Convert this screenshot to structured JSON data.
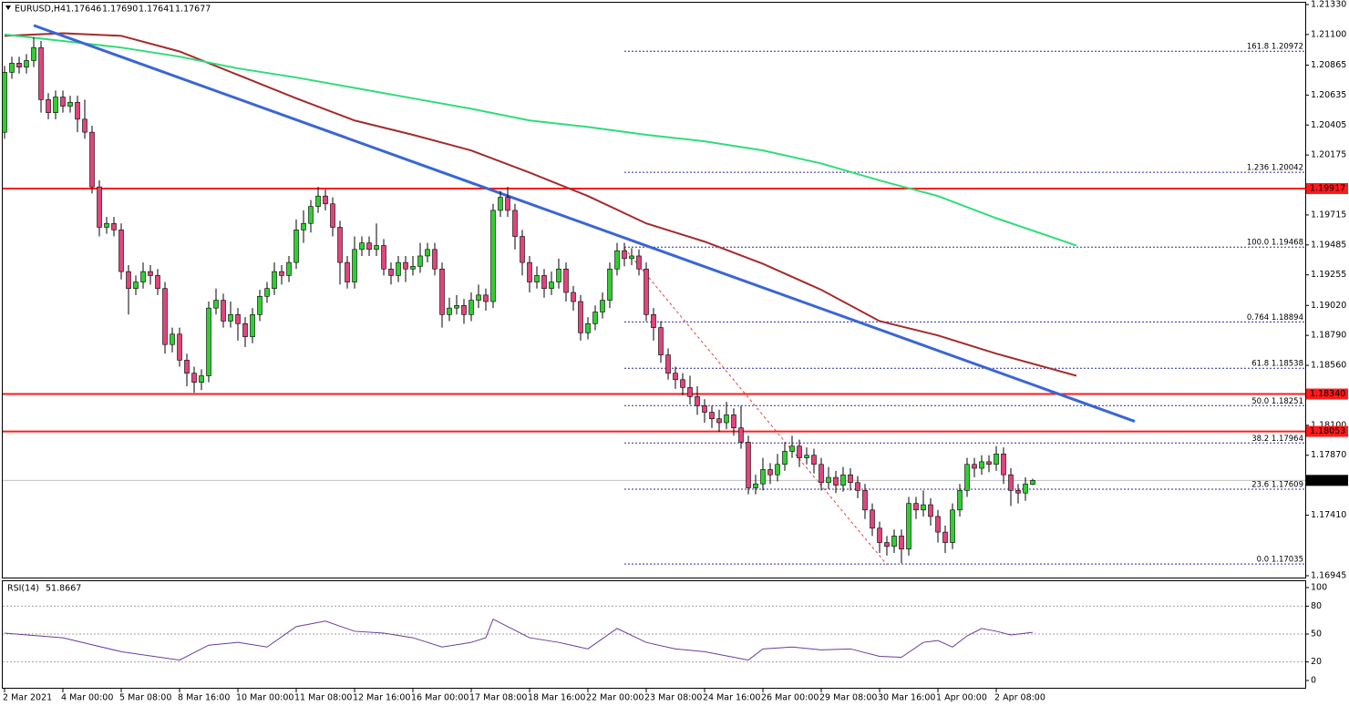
{
  "chart_data": {
    "type": "candlestick",
    "title": "EURUSD,H4",
    "header_ohlc": [
      1.17646,
      {
        "value": 1.1769,
        "label": "1.17690"
      },
      1.17641,
      1.17677
    ],
    "bull_color": "#32cd32",
    "bear_color": "#e0457b",
    "ylim": [
      1.16945,
      1.2133
    ],
    "yticks": [
      {
        "value": 1.2133,
        "label": "1.21330"
      },
      {
        "value": 1.211,
        "label": "1.21100"
      },
      1.20865,
      1.20635,
      1.20405,
      1.20175,
      1.19715,
      1.19485,
      1.19255,
      {
        "value": 1.1902,
        "label": "1.19020"
      },
      {
        "value": 1.1879,
        "label": "1.18790"
      },
      {
        "value": 1.1856,
        "label": "1.18560"
      },
      {
        "value": 1.181,
        "label": "1.18100"
      },
      {
        "value": 1.1787,
        "label": "1.17870"
      },
      {
        "value": 1.1741,
        "label": "1.17410"
      },
      1.16945
    ],
    "xticks": [
      {
        "value": 0,
        "label": "2 Mar 2021"
      },
      {
        "value": 8,
        "label": "4 Mar 00:00"
      },
      {
        "value": 16,
        "label": "5 Mar 08:00"
      },
      {
        "value": 24,
        "label": "8 Mar 16:00"
      },
      {
        "value": 32,
        "label": "10 Mar 00:00"
      },
      {
        "value": 40,
        "label": "11 Mar 08:00"
      },
      {
        "value": 48,
        "label": "12 Mar 16:00"
      },
      {
        "value": 56,
        "label": "16 Mar 00:00"
      },
      {
        "value": 64,
        "label": "17 Mar 08:00"
      },
      {
        "value": 72,
        "label": "18 Mar 16:00"
      },
      {
        "value": 80,
        "label": "22 Mar 00:00"
      },
      {
        "value": 88,
        "label": "23 Mar 08:00"
      },
      {
        "value": 96,
        "label": "24 Mar 16:00"
      },
      {
        "value": 104,
        "label": "26 Mar 00:00"
      },
      {
        "value": 112,
        "label": "29 Mar 08:00"
      },
      {
        "value": 120,
        "label": "30 Mar 16:00"
      },
      {
        "value": 128,
        "label": "1 Apr 00:00"
      },
      {
        "value": 136,
        "label": "2 Apr 08:00"
      }
    ],
    "candles": [
      [
        1.2035,
        1.2086,
        1.203,
        1.2081
      ],
      [
        1.2081,
        1.2093,
        1.2076,
        1.2088
      ],
      [
        1.2088,
        1.2093,
        1.208,
        1.2085
      ],
      [
        1.2085,
        1.2095,
        1.208,
        1.209
      ],
      [
        1.209,
        1.2108,
        1.2085,
        1.21
      ],
      [
        1.21,
        1.2105,
        1.205,
        1.206
      ],
      [
        1.206,
        1.2065,
        1.2045,
        1.205
      ],
      [
        1.205,
        1.2067,
        1.2045,
        1.2062
      ],
      [
        1.2062,
        1.2067,
        1.205,
        1.2055
      ],
      [
        1.2055,
        1.2063,
        1.205,
        1.2058
      ],
      [
        1.2058,
        1.2063,
        1.2035,
        1.2045
      ],
      [
        1.2045,
        1.206,
        1.203,
        1.2035
      ],
      [
        1.2035,
        1.204,
        1.1988,
        1.1993
      ],
      [
        1.1993,
        1.1998,
        1.1955,
        1.1962
      ],
      [
        1.1962,
        1.197,
        1.1957,
        1.1965
      ],
      [
        1.1965,
        1.197,
        1.1955,
        1.196
      ],
      [
        1.196,
        1.1965,
        1.1922,
        1.1928
      ],
      [
        1.1928,
        1.1933,
        1.1895,
        1.1915
      ],
      [
        1.1915,
        1.1925,
        1.191,
        1.192
      ],
      [
        1.192,
        1.1935,
        1.1915,
        1.1928
      ],
      [
        1.1928,
        1.1933,
        1.1918,
        1.1925
      ],
      [
        1.1925,
        1.193,
        1.191,
        1.1915
      ],
      [
        1.1915,
        1.192,
        1.1865,
        1.1872
      ],
      [
        1.1872,
        1.1885,
        1.1866,
        1.188
      ],
      [
        1.188,
        1.1885,
        1.1855,
        1.186
      ],
      [
        1.186,
        1.1865,
        1.184,
        1.185
      ],
      [
        1.185,
        1.1855,
        1.1835,
        1.1843
      ],
      [
        1.1843,
        1.1853,
        1.1837,
        1.1848
      ],
      [
        1.1848,
        1.1905,
        1.1843,
        1.19
      ],
      [
        1.19,
        1.1915,
        1.1895,
        1.1906
      ],
      [
        1.1906,
        1.1911,
        1.1885,
        1.189
      ],
      [
        1.189,
        1.1905,
        1.1885,
        1.1895
      ],
      [
        1.1895,
        1.19,
        1.1875,
        1.1888
      ],
      [
        1.1888,
        1.1893,
        1.187,
        1.1878
      ],
      [
        1.1878,
        1.19,
        1.1873,
        1.1895
      ],
      [
        1.1895,
        1.1914,
        1.189,
        1.1909
      ],
      [
        1.1909,
        1.192,
        1.1904,
        1.1915
      ],
      [
        1.1915,
        1.1935,
        1.191,
        1.1928
      ],
      [
        1.1928,
        1.1933,
        1.1918,
        1.1925
      ],
      [
        1.1925,
        1.194,
        1.192,
        1.1935
      ],
      [
        1.1935,
        1.1968,
        1.193,
        1.196
      ],
      [
        1.196,
        1.1975,
        1.195,
        1.1965
      ],
      [
        1.1965,
        1.1983,
        1.1958,
        1.1978
      ],
      [
        1.1978,
        1.1993,
        1.1973,
        1.1986
      ],
      [
        1.1986,
        1.1991,
        1.1975,
        1.198
      ],
      [
        1.198,
        1.1985,
        1.1955,
        1.1962
      ],
      [
        1.1962,
        1.1967,
        1.1918,
        1.1935
      ],
      [
        1.1935,
        1.194,
        1.1915,
        1.192
      ],
      [
        1.192,
        1.1955,
        1.1915,
        1.1945
      ],
      [
        1.1945,
        1.1955,
        1.194,
        1.195
      ],
      [
        1.195,
        1.1955,
        1.194,
        1.1945
      ],
      [
        1.1945,
        1.1965,
        1.194,
        1.1948
      ],
      [
        1.1948,
        1.1953,
        1.1925,
        1.193
      ],
      [
        1.193,
        1.1935,
        1.1918,
        1.1925
      ],
      [
        1.1925,
        1.194,
        1.192,
        1.1935
      ],
      [
        1.1935,
        1.194,
        1.192,
        1.193
      ],
      [
        1.193,
        1.194,
        1.1925,
        1.1932
      ],
      [
        1.1932,
        1.195,
        1.1927,
        1.194
      ],
      [
        1.194,
        1.195,
        1.1935,
        1.1945
      ],
      [
        1.1945,
        1.195,
        1.1925,
        1.193
      ],
      [
        1.193,
        1.1935,
        1.1885,
        1.1895
      ],
      [
        1.1895,
        1.1908,
        1.189,
        1.19
      ],
      [
        1.19,
        1.191,
        1.1895,
        1.1902
      ],
      [
        1.1902,
        1.1907,
        1.1888,
        1.1895
      ],
      [
        1.1895,
        1.1912,
        1.189,
        1.1906
      ],
      [
        1.1906,
        1.1918,
        1.19,
        1.191
      ],
      [
        1.191,
        1.1915,
        1.1898,
        1.1905
      ],
      [
        1.1905,
        1.198,
        1.19,
        1.1975
      ],
      [
        1.1975,
        1.199,
        1.197,
        1.1985
      ],
      [
        1.1985,
        1.1993,
        1.197,
        1.1975
      ],
      [
        1.1975,
        1.198,
        1.1945,
        1.1955
      ],
      [
        1.1955,
        1.196,
        1.1925,
        1.1935
      ],
      [
        1.1935,
        1.194,
        1.1912,
        1.192
      ],
      [
        1.192,
        1.1932,
        1.1915,
        1.1925
      ],
      [
        1.1925,
        1.193,
        1.1908,
        1.1915
      ],
      [
        1.1915,
        1.1928,
        1.191,
        1.192
      ],
      [
        1.192,
        1.1938,
        1.1915,
        1.193
      ],
      [
        1.193,
        1.1935,
        1.1905,
        1.1912
      ],
      [
        1.1912,
        1.1917,
        1.1898,
        1.1905
      ],
      [
        1.1905,
        1.191,
        1.1875,
        1.1881
      ],
      [
        1.1881,
        1.1893,
        1.1876,
        1.1888
      ],
      [
        1.1888,
        1.1902,
        1.1883,
        1.1897
      ],
      [
        1.1897,
        1.1912,
        1.1892,
        1.1906
      ],
      [
        1.1906,
        1.1935,
        1.19,
        1.193
      ],
      [
        1.193,
        1.195,
        1.1925,
        1.1944
      ],
      [
        1.1944,
        1.195,
        1.1932,
        1.1938
      ],
      [
        1.1938,
        1.1946,
        1.1933,
        1.194
      ],
      [
        1.194,
        1.1945,
        1.1925,
        1.193
      ],
      [
        1.193,
        1.1935,
        1.189,
        1.1895
      ],
      [
        1.1895,
        1.19,
        1.1875,
        1.1885
      ],
      [
        1.1885,
        1.189,
        1.1858,
        1.1864
      ],
      [
        1.1864,
        1.1869,
        1.1845,
        1.185
      ],
      [
        1.185,
        1.1855,
        1.1838,
        1.1845
      ],
      [
        1.1845,
        1.185,
        1.1833,
        1.1839
      ],
      [
        1.1839,
        1.1848,
        1.1826,
        1.1832
      ],
      [
        1.1832,
        1.184,
        1.1818,
        1.1825
      ],
      [
        1.1825,
        1.183,
        1.1812,
        1.182
      ],
      [
        1.182,
        1.1825,
        1.1808,
        1.1815
      ],
      [
        1.1815,
        1.1822,
        1.1805,
        1.1812
      ],
      [
        1.1812,
        1.1828,
        1.1807,
        1.1818
      ],
      [
        1.1818,
        1.1823,
        1.1802,
        1.1808
      ],
      [
        1.1808,
        1.1825,
        1.1792,
        1.1797
      ],
      [
        1.1797,
        1.1802,
        1.1757,
        1.1762
      ],
      [
        1.1762,
        1.1772,
        1.1757,
        1.1765
      ],
      [
        1.1765,
        1.1785,
        1.176,
        1.1776
      ],
      [
        1.1776,
        1.1781,
        1.1765,
        1.1772
      ],
      [
        1.1772,
        1.1788,
        1.1767,
        1.178
      ],
      [
        1.178,
        1.1797,
        1.1775,
        1.179
      ],
      [
        1.179,
        1.1802,
        1.1785,
        1.1794
      ],
      [
        1.1794,
        1.1799,
        1.1778,
        1.1785
      ],
      [
        1.1785,
        1.1793,
        1.178,
        1.1787
      ],
      [
        1.1787,
        1.1792,
        1.1773,
        1.178
      ],
      [
        1.178,
        1.1785,
        1.176,
        1.1766
      ],
      [
        1.1766,
        1.1778,
        1.1761,
        1.177
      ],
      [
        1.177,
        1.1775,
        1.1758,
        1.1764
      ],
      [
        1.1764,
        1.1778,
        1.1759,
        1.1772
      ],
      [
        1.1772,
        1.1777,
        1.176,
        1.1766
      ],
      [
        1.1766,
        1.1771,
        1.1754,
        1.176
      ],
      [
        1.176,
        1.1765,
        1.1738,
        1.1745
      ],
      [
        1.1745,
        1.175,
        1.1725,
        1.1731
      ],
      [
        1.1731,
        1.1736,
        1.1712,
        1.172
      ],
      [
        1.172,
        1.1725,
        1.171,
        1.1717
      ],
      [
        1.1717,
        1.173,
        1.1712,
        1.1725
      ],
      [
        1.1725,
        1.173,
        1.1704,
        1.1715
      ],
      [
        1.1715,
        1.1755,
        1.171,
        1.175
      ],
      [
        1.175,
        1.1755,
        1.1738,
        1.1745
      ],
      [
        1.1745,
        1.176,
        1.174,
        1.1749
      ],
      [
        1.1749,
        1.1754,
        1.1733,
        1.174
      ],
      [
        1.174,
        1.1745,
        1.172,
        1.1728
      ],
      [
        1.1728,
        1.1733,
        1.1712,
        1.172
      ],
      [
        1.172,
        1.175,
        1.1715,
        1.1745
      ],
      [
        1.1745,
        1.1765,
        1.174,
        1.176
      ],
      [
        1.176,
        1.1785,
        1.1755,
        1.178
      ],
      [
        1.178,
        1.1785,
        1.177,
        1.1777
      ],
      [
        1.1777,
        1.1787,
        1.1772,
        1.1782
      ],
      [
        1.1782,
        1.1787,
        1.1774,
        1.178
      ],
      [
        1.178,
        1.1794,
        1.1775,
        1.1788
      ],
      [
        1.1788,
        1.1793,
        1.1765,
        1.1772
      ],
      [
        1.1772,
        1.1777,
        1.1748,
        1.176
      ],
      [
        1.176,
        1.1765,
        1.175,
        1.1758
      ],
      [
        1.1758,
        1.177,
        1.1752,
        1.1765
      ],
      [
        1.17646,
        1.1769,
        1.17641,
        1.17677
      ]
    ],
    "moving_averages": [
      {
        "color": "#a52a2a",
        "x": [
          0,
          8,
          16,
          24,
          32,
          40,
          48,
          56,
          64,
          72,
          80,
          88,
          96,
          104,
          112,
          120,
          128,
          136,
          147
        ],
        "values": [
          1.2109,
          1.2111,
          1.2109,
          1.2097,
          1.2079,
          1.2061,
          1.2044,
          1.2033,
          1.2021,
          1.2004,
          1.1986,
          1.1965,
          1.1951,
          1.1934,
          1.1914,
          1.189,
          1.1879,
          1.1865,
          1.1848
        ]
      },
      {
        "color": "#2edc7a",
        "x": [
          0,
          8,
          16,
          24,
          32,
          40,
          48,
          56,
          64,
          72,
          80,
          88,
          96,
          104,
          112,
          120,
          128,
          136,
          147
        ],
        "values": [
          1.211,
          1.2105,
          1.21,
          1.2093,
          1.2084,
          1.2077,
          1.2069,
          1.2061,
          1.2053,
          1.2044,
          1.2039,
          1.2033,
          1.2028,
          1.2021,
          1.2011,
          1.1998,
          1.1986,
          1.1969,
          1.1948
        ]
      }
    ],
    "trendline": {
      "color": "#3a66d4",
      "x": [
        4,
        155
      ],
      "values": [
        1.2117,
        1.1813
      ]
    },
    "fib_diagonal": {
      "color": "#e04040",
      "x": [
        85,
        121
      ],
      "values": [
        1.1946,
        1.1703
      ]
    },
    "fib_color": "#2a2aa0",
    "fib_levels": [
      {
        "value": 1.20972,
        "label": "161.8 1.20972"
      },
      {
        "value": 1.20042,
        "label": "1.236 1.20042"
      },
      {
        "value": 1.19468,
        "label": "100.0 1.19468"
      },
      {
        "value": 1.18894,
        "label": "0.764 1.18894"
      },
      {
        "value": 1.18538,
        "label": "61.8 1.18538"
      },
      {
        "value": 1.18251,
        "label": "50.0 1.18251"
      },
      {
        "value": 1.17964,
        "label": "38.2 1.17964"
      },
      {
        "value": 1.17609,
        "label": "23.6 1.17609"
      },
      {
        "value": 1.17035,
        "label": "0.0 1.17035"
      }
    ],
    "levels_color": "#ff1a1a",
    "levels": [
      {
        "value": 1.19917,
        "label": "1.19917"
      },
      {
        "value": 1.1834,
        "label": "1.18340"
      },
      {
        "value": 1.18053,
        "label": "1.18053"
      }
    ],
    "current_price": 1.17677,
    "rsi": {
      "name": "RSI(14)",
      "color": "#6a3d9a",
      "ylim": [
        0,
        100
      ],
      "yticks": [
        100,
        80,
        50,
        20,
        0
      ],
      "x": [
        0,
        8,
        16,
        24,
        28,
        32,
        36,
        40,
        44,
        48,
        52,
        56,
        60,
        64,
        66,
        67,
        72,
        76,
        80,
        84,
        88,
        92,
        96,
        100,
        102,
        104,
        108,
        112,
        116,
        120,
        123,
        126,
        128,
        130,
        132,
        134,
        136,
        138,
        141
      ],
      "values": [
        51,
        46,
        31,
        22,
        38,
        41,
        36,
        58,
        64,
        53,
        51,
        46,
        36,
        41,
        46,
        66,
        46,
        41,
        34,
        56,
        41,
        34,
        31,
        25,
        22,
        34,
        36,
        33,
        34,
        26,
        25,
        41,
        43,
        36,
        48,
        56,
        53,
        49,
        51.8667
      ]
    }
  }
}
